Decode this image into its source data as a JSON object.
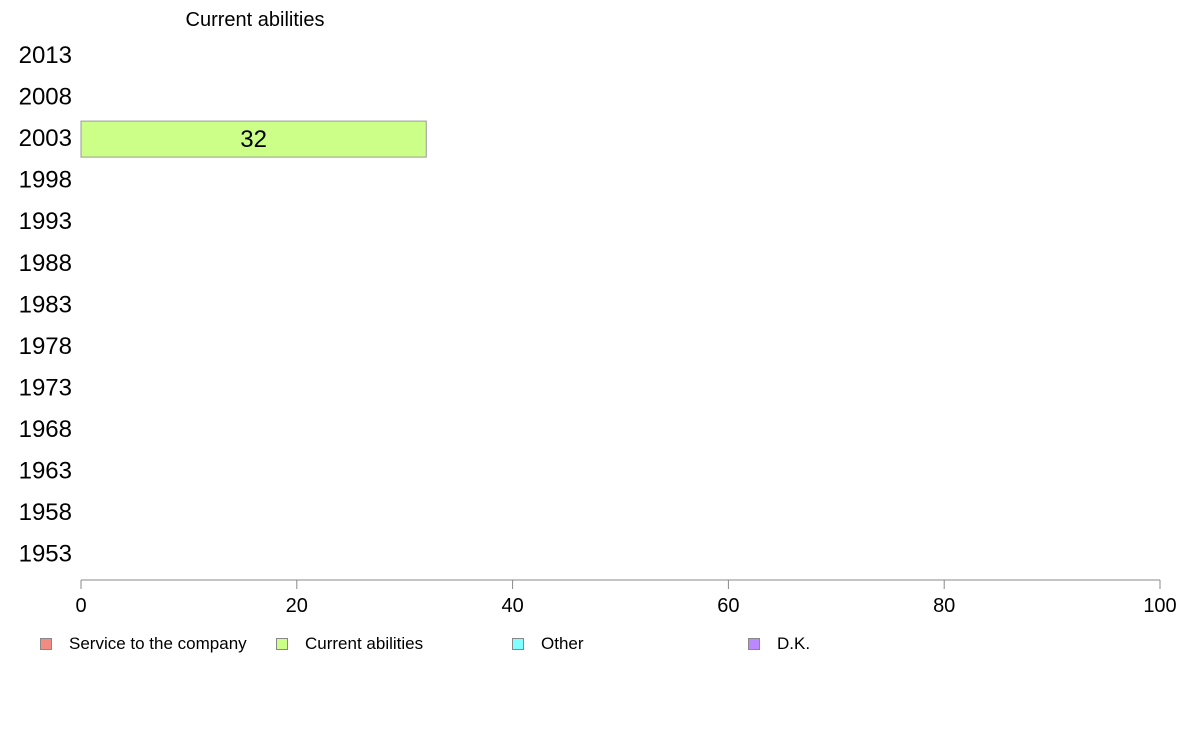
{
  "chart_data": {
    "type": "bar",
    "orientation": "horizontal",
    "title": "Current abilities",
    "categories": [
      "2013",
      "2008",
      "2003",
      "1998",
      "1993",
      "1988",
      "1983",
      "1978",
      "1973",
      "1968",
      "1963",
      "1958",
      "1953"
    ],
    "series": [
      {
        "name": "Service to the company",
        "color": "#f28b82",
        "values": [
          null,
          null,
          null,
          null,
          null,
          null,
          null,
          null,
          null,
          null,
          null,
          null,
          null
        ]
      },
      {
        "name": "Current abilities",
        "color": "#ccff88",
        "values": [
          null,
          null,
          32,
          null,
          null,
          null,
          null,
          null,
          null,
          null,
          null,
          null,
          null
        ]
      },
      {
        "name": "Other",
        "color": "#7fffff",
        "values": [
          null,
          null,
          null,
          null,
          null,
          null,
          null,
          null,
          null,
          null,
          null,
          null,
          null
        ]
      },
      {
        "name": "D.K.",
        "color": "#bb88ff",
        "values": [
          null,
          null,
          null,
          null,
          null,
          null,
          null,
          null,
          null,
          null,
          null,
          null,
          null
        ]
      }
    ],
    "xlim": [
      0,
      100
    ],
    "xticks": [
      0,
      20,
      40,
      60,
      80,
      100
    ],
    "grid": false,
    "legend_position": "bottom"
  }
}
